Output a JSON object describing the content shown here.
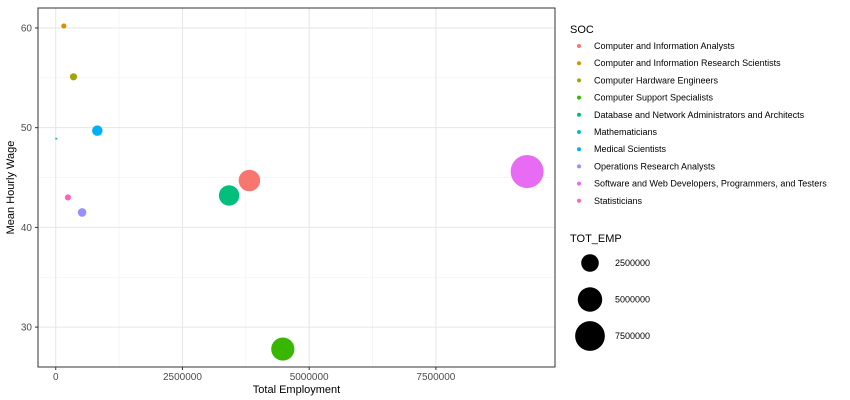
{
  "chart_data": {
    "type": "scatter",
    "xlabel": "Total Employment",
    "ylabel": "Mean Hourly Wage",
    "xlim": [
      -350000,
      9850000
    ],
    "ylim": [
      26,
      62
    ],
    "x_ticks": [
      0,
      2500000,
      5000000,
      7500000
    ],
    "x_tick_labels": [
      "0",
      "2500000",
      "5000000",
      "7500000"
    ],
    "y_ticks": [
      30,
      40,
      50,
      60
    ],
    "y_tick_labels": [
      "30",
      "40",
      "50",
      "60"
    ],
    "grid": true,
    "legend_position": "right",
    "color_legend": {
      "title": "SOC",
      "entries": [
        {
          "name": "Computer and Information Analysts",
          "color": "#F8766D"
        },
        {
          "name": "Computer and Information Research Scientists",
          "color": "#D89000"
        },
        {
          "name": "Computer Hardware Engineers",
          "color": "#A3A500"
        },
        {
          "name": "Computer Support Specialists",
          "color": "#39B600"
        },
        {
          "name": "Database and Network Administrators and Architects",
          "color": "#00BF7D"
        },
        {
          "name": "Mathematicians",
          "color": "#00BFC4"
        },
        {
          "name": "Medical Scientists",
          "color": "#00B0F6"
        },
        {
          "name": "Operations Research Analysts",
          "color": "#9590FF"
        },
        {
          "name": "Software and Web Developers, Programmers, and Testers",
          "color": "#E76BF3"
        },
        {
          "name": "Statisticians",
          "color": "#FF62BC"
        }
      ]
    },
    "size_legend": {
      "title": "TOT_EMP",
      "entries": [
        {
          "label": "2500000",
          "value": 2500000
        },
        {
          "label": "5000000",
          "value": 5000000
        },
        {
          "label": "7500000",
          "value": 7500000
        }
      ]
    },
    "points": [
      {
        "soc": "Computer and Information Analysts",
        "x": 3820000,
        "y": 44.7,
        "tot_emp": 3820000,
        "color": "#F8766D"
      },
      {
        "soc": "Computer and Information Research Scientists",
        "x": 160000,
        "y": 60.2,
        "tot_emp": 160000,
        "color": "#D89000"
      },
      {
        "soc": "Computer Hardware Engineers",
        "x": 350000,
        "y": 55.1,
        "tot_emp": 350000,
        "color": "#A3A500"
      },
      {
        "soc": "Computer Support Specialists",
        "x": 4480000,
        "y": 27.8,
        "tot_emp": 4480000,
        "color": "#39B600"
      },
      {
        "soc": "Database and Network Administrators and Architects",
        "x": 3420000,
        "y": 43.2,
        "tot_emp": 3420000,
        "color": "#00BF7D"
      },
      {
        "soc": "Mathematicians",
        "x": 10000,
        "y": 48.9,
        "tot_emp": 10000,
        "color": "#00BFC4"
      },
      {
        "soc": "Medical Scientists",
        "x": 820000,
        "y": 49.7,
        "tot_emp": 820000,
        "color": "#00B0F6"
      },
      {
        "soc": "Operations Research Analysts",
        "x": 520000,
        "y": 41.5,
        "tot_emp": 520000,
        "color": "#9590FF"
      },
      {
        "soc": "Software and Web Developers, Programmers, and Testers",
        "x": 9300000,
        "y": 45.6,
        "tot_emp": 9300000,
        "color": "#E76BF3"
      },
      {
        "soc": "Statisticians",
        "x": 240000,
        "y": 43.0,
        "tot_emp": 240000,
        "color": "#FF62BC"
      }
    ]
  }
}
